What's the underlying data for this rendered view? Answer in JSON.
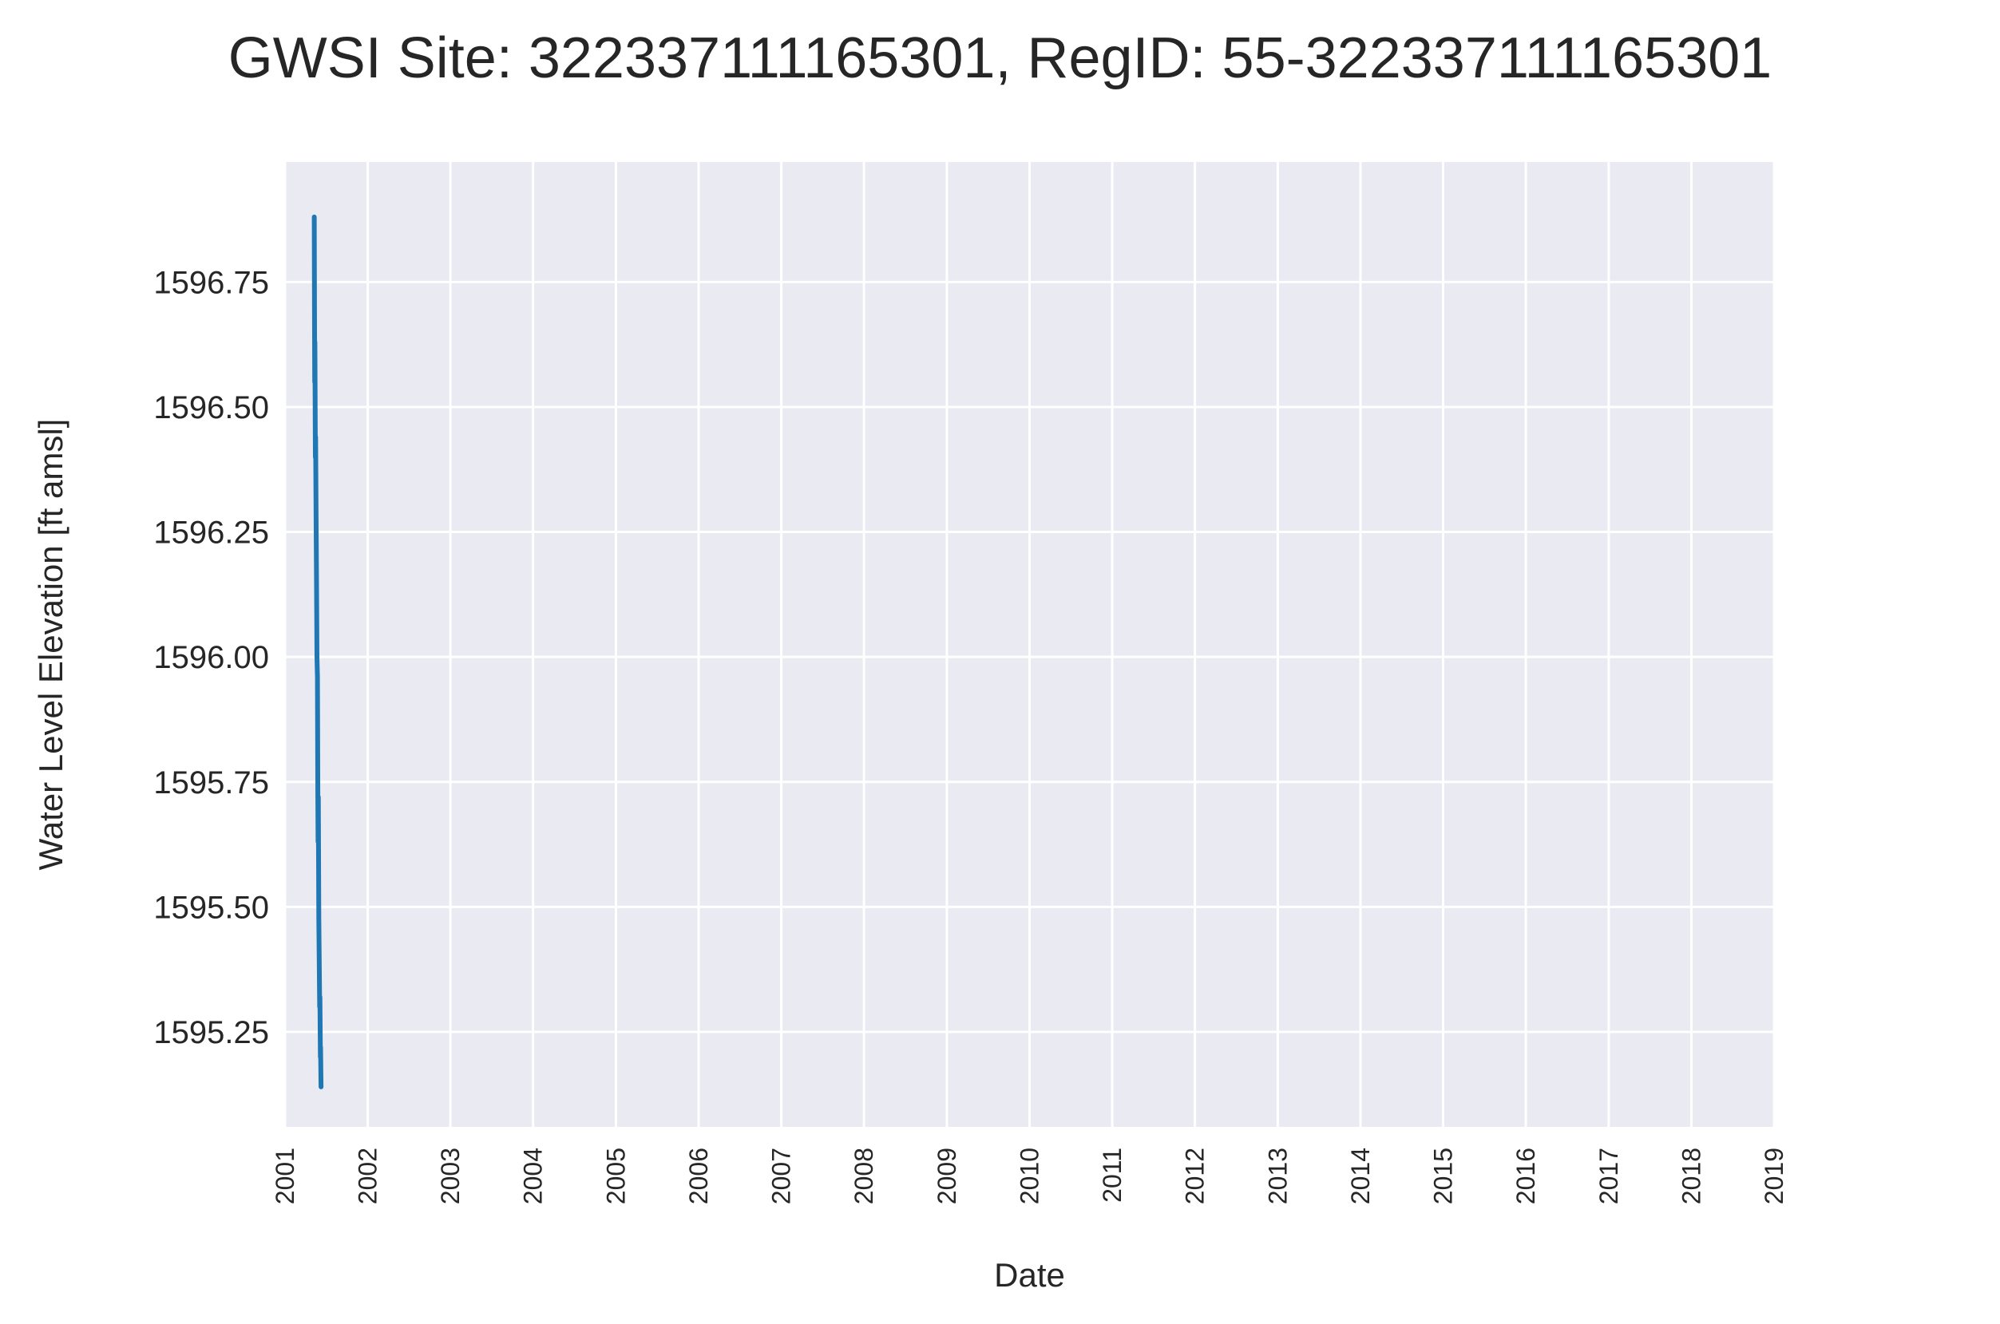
{
  "chart_data": {
    "type": "line",
    "title": "GWSI Site: 322337111165301, RegID: 55-322337111165301",
    "xlabel": "Date",
    "ylabel": "Water Level Elevation [ft amsl]",
    "x_tick_labels": [
      "2001",
      "2002",
      "2003",
      "2004",
      "2005",
      "2006",
      "2007",
      "2008",
      "2009",
      "2010",
      "2011",
      "2012",
      "2013",
      "2014",
      "2015",
      "2016",
      "2017",
      "2018",
      "2019"
    ],
    "y_tick_labels": [
      "1595.25",
      "1595.50",
      "1595.75",
      "1596.00",
      "1596.25",
      "1596.50",
      "1596.75"
    ],
    "x_range": [
      "2001-01-01",
      "2019-01-01"
    ],
    "ylim": [
      1595.06,
      1596.99
    ],
    "grid": true,
    "background": "#eaeaf2",
    "grid_color": "#ffffff",
    "series": [
      {
        "color": "#1f77b4",
        "points": [
          {
            "x": "2001-05-10",
            "y": 1596.88
          },
          {
            "x": "2001-05-11",
            "y": 1596.7
          },
          {
            "x": "2001-05-12",
            "y": 1596.55
          },
          {
            "x": "2001-05-13",
            "y": 1596.63
          },
          {
            "x": "2001-05-15",
            "y": 1596.4
          },
          {
            "x": "2001-05-16",
            "y": 1596.44
          },
          {
            "x": "2001-05-18",
            "y": 1596.28
          },
          {
            "x": "2001-05-20",
            "y": 1596.16
          },
          {
            "x": "2001-05-22",
            "y": 1596.0
          },
          {
            "x": "2001-05-24",
            "y": 1595.96
          },
          {
            "x": "2001-05-26",
            "y": 1595.72
          },
          {
            "x": "2001-05-27",
            "y": 1595.63
          },
          {
            "x": "2001-05-28",
            "y": 1595.72
          },
          {
            "x": "2001-05-30",
            "y": 1595.48
          },
          {
            "x": "2001-06-03",
            "y": 1595.3
          },
          {
            "x": "2001-06-04",
            "y": 1595.32
          },
          {
            "x": "2001-06-06",
            "y": 1595.2
          },
          {
            "x": "2001-06-07",
            "y": 1595.22
          },
          {
            "x": "2001-06-09",
            "y": 1595.14
          }
        ]
      }
    ]
  }
}
